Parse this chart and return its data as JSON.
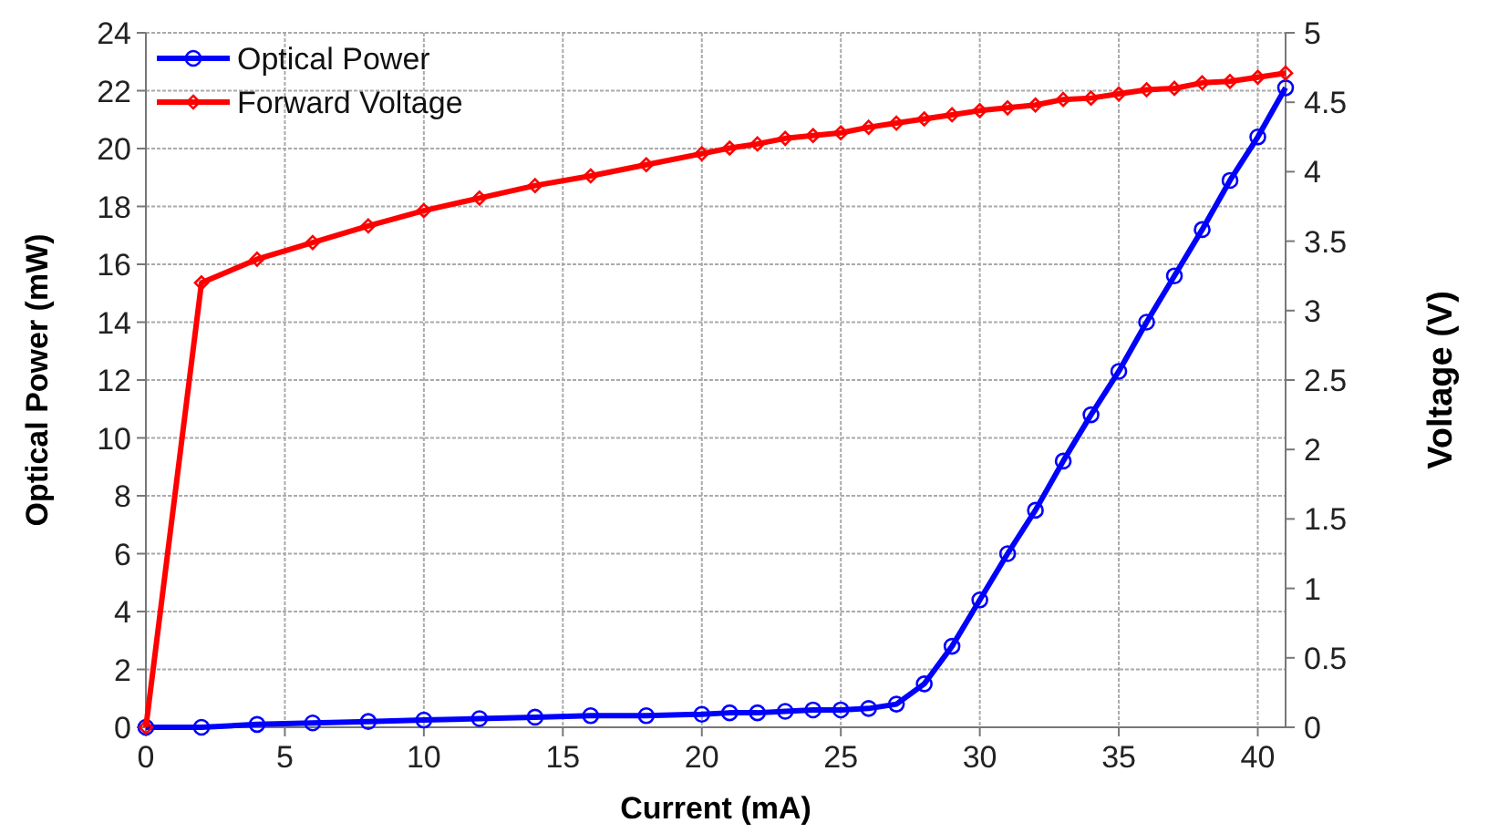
{
  "chart_data": {
    "type": "line",
    "xlabel": "Current (mA)",
    "ylabel": "Optical Power (mW)",
    "y2label": "Voltage (V)",
    "xlim": [
      0,
      41
    ],
    "xticks": [
      0,
      5,
      10,
      15,
      20,
      25,
      30,
      35,
      40
    ],
    "ylim": [
      0,
      24
    ],
    "yticks": [
      0,
      2,
      4,
      6,
      8,
      10,
      12,
      14,
      16,
      18,
      20,
      22,
      24
    ],
    "y2lim": [
      0,
      5
    ],
    "y2ticks": [
      0,
      0.5,
      1,
      1.5,
      2,
      2.5,
      3,
      3.5,
      4,
      4.5,
      5
    ],
    "grid": true,
    "legend": "top left",
    "x": [
      0,
      2,
      4,
      6,
      8,
      10,
      12,
      14,
      16,
      18,
      20,
      21,
      22,
      23,
      24,
      25,
      26,
      27,
      28,
      29,
      30,
      31,
      32,
      33,
      34,
      35,
      36,
      37,
      38,
      39,
      40,
      41
    ],
    "series": [
      {
        "name": "Optical Power",
        "color": "#0000ff",
        "marker": "circle",
        "values": [
          0,
          0,
          0.1,
          0.15,
          0.2,
          0.25,
          0.3,
          0.35,
          0.4,
          0.4,
          0.45,
          0.5,
          0.5,
          0.55,
          0.6,
          0.6,
          0.65,
          0.8,
          1.5,
          2.8,
          4.4,
          6.0,
          7.5,
          9.2,
          10.8,
          12.3,
          14.0,
          15.6,
          17.2,
          18.9,
          20.4,
          22.1
        ]
      },
      {
        "name": "Forward Voltage",
        "color": "#ff0000",
        "marker": "diamond",
        "axis": "y2",
        "values": [
          0,
          3.2,
          3.37,
          3.49,
          3.61,
          3.72,
          3.81,
          3.9,
          3.97,
          4.05,
          4.13,
          4.17,
          4.2,
          4.24,
          4.26,
          4.28,
          4.32,
          4.35,
          4.38,
          4.41,
          4.44,
          4.46,
          4.48,
          4.52,
          4.53,
          4.56,
          4.59,
          4.6,
          4.64,
          4.65,
          4.68,
          4.71
        ]
      }
    ]
  }
}
